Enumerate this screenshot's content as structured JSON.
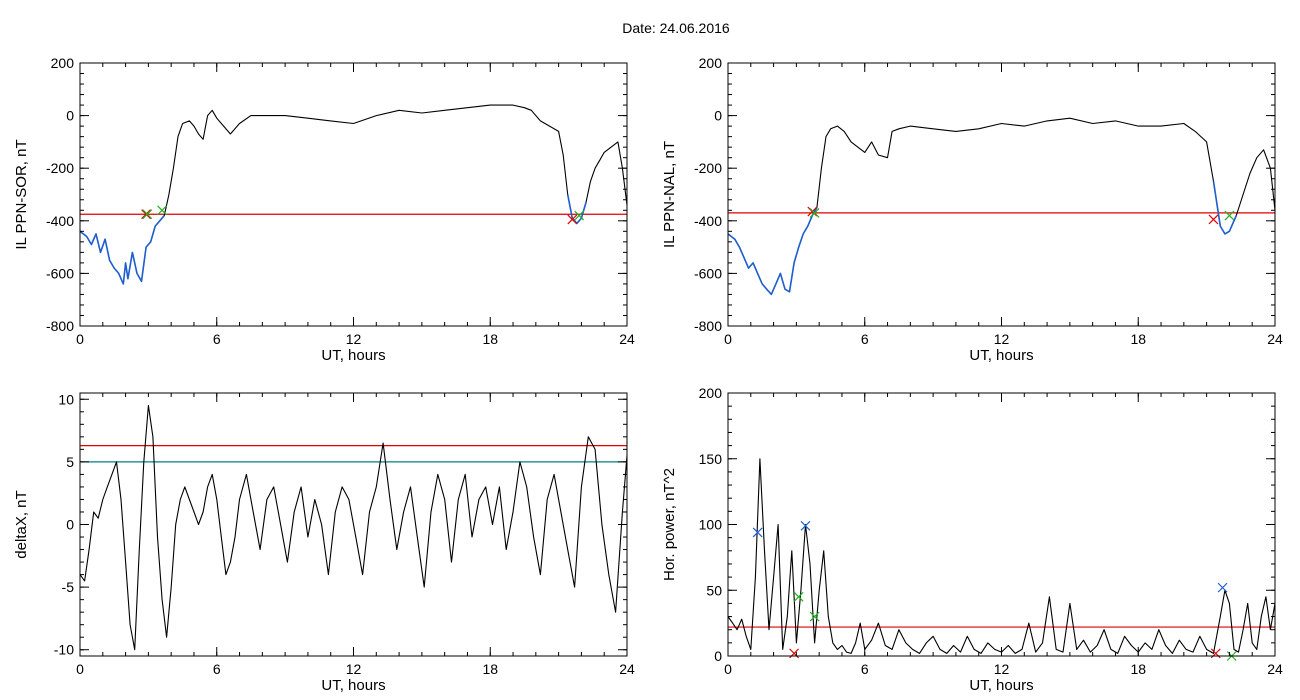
{
  "page_title": "Date:  24.06.2016",
  "colors": {
    "threshold": "#e00000",
    "threshold_secondary": "#008080",
    "segment": "#1f5fd0",
    "marker_red": "#e00000",
    "marker_green": "#22b022",
    "marker_blue": "#1f5fd0",
    "trace": "#000000"
  },
  "chart_data": [
    {
      "type": "line",
      "xlabel": "UT, hours",
      "ylabel": "IL PPN-SOR, nT",
      "xlim": [
        0,
        24
      ],
      "ylim": [
        -800,
        200
      ],
      "xticks": [
        "0",
        "6",
        "12",
        "18",
        "24"
      ],
      "yticks": [
        "-800",
        "-600",
        "-400",
        "-200",
        "0",
        "200"
      ],
      "threshold": -375,
      "threshold2": null,
      "series": [
        {
          "role": "trace",
          "x": [
            0,
            0.3,
            0.5,
            0.7,
            0.9,
            1.1,
            1.3,
            1.5,
            1.7,
            1.9,
            2.0,
            2.1,
            2.3,
            2.5,
            2.7,
            2.9,
            3.1,
            3.3,
            3.5,
            3.7,
            3.9,
            4.1,
            4.3,
            4.5,
            4.8,
            5.0,
            5.2,
            5.4,
            5.6,
            5.8,
            6.0,
            6.3,
            6.6,
            7.0,
            7.5,
            8,
            9,
            10,
            11,
            12,
            13,
            14,
            15,
            16,
            17,
            18,
            19,
            19.5,
            19.8,
            20.2,
            20.6,
            21.0,
            21.2,
            21.4,
            21.6,
            21.8,
            22.0,
            22.2,
            22.4,
            22.6,
            22.8,
            23.0,
            23.3,
            23.6,
            23.8,
            24.0
          ],
          "y": [
            -440,
            -460,
            -490,
            -450,
            -520,
            -470,
            -550,
            -580,
            -600,
            -640,
            -560,
            -620,
            -520,
            -600,
            -630,
            -500,
            -480,
            -420,
            -400,
            -380,
            -300,
            -200,
            -80,
            -30,
            -20,
            -40,
            -70,
            -90,
            0,
            20,
            -10,
            -40,
            -70,
            -30,
            0,
            0,
            0,
            -10,
            -20,
            -30,
            0,
            20,
            10,
            20,
            30,
            40,
            40,
            30,
            20,
            -20,
            -40,
            -60,
            -150,
            -300,
            -390,
            -410,
            -390,
            -330,
            -250,
            -200,
            -170,
            -140,
            -120,
            -100,
            -200,
            -340
          ]
        },
        {
          "role": "segment",
          "x": [
            0,
            0.3,
            0.5,
            0.7,
            0.9,
            1.1,
            1.3,
            1.5,
            1.7,
            1.9,
            2.0,
            2.1,
            2.3,
            2.5,
            2.7,
            2.9,
            3.1,
            3.3,
            3.5,
            3.7
          ],
          "y": [
            -440,
            -460,
            -490,
            -450,
            -520,
            -470,
            -550,
            -580,
            -600,
            -640,
            -560,
            -620,
            -520,
            -600,
            -630,
            -500,
            -480,
            -420,
            -400,
            -380
          ]
        },
        {
          "role": "segment",
          "x": [
            21.4,
            21.6,
            21.8,
            22.0,
            22.2
          ],
          "y": [
            -300,
            -390,
            -410,
            -390,
            -330
          ]
        }
      ],
      "markers": [
        {
          "x": 2.9,
          "y": -375,
          "color": "red"
        },
        {
          "x": 2.95,
          "y": -375,
          "color": "green"
        },
        {
          "x": 3.6,
          "y": -360,
          "color": "green"
        },
        {
          "x": 21.6,
          "y": -395,
          "color": "red"
        },
        {
          "x": 21.9,
          "y": -380,
          "color": "green"
        }
      ]
    },
    {
      "type": "line",
      "xlabel": "UT, hours",
      "ylabel": "IL PPN-NAL, nT",
      "xlim": [
        0,
        24
      ],
      "ylim": [
        -800,
        200
      ],
      "xticks": [
        "0",
        "6",
        "12",
        "18",
        "24"
      ],
      "yticks": [
        "-800",
        "-600",
        "-400",
        "-200",
        "0",
        "200"
      ],
      "threshold": -370,
      "threshold2": null,
      "series": [
        {
          "role": "trace",
          "x": [
            0,
            0.3,
            0.5,
            0.7,
            0.9,
            1.1,
            1.3,
            1.5,
            1.7,
            1.9,
            2.1,
            2.3,
            2.5,
            2.7,
            2.9,
            3.1,
            3.3,
            3.5,
            3.7,
            3.9,
            4.1,
            4.3,
            4.5,
            4.8,
            5.1,
            5.4,
            5.7,
            6.0,
            6.3,
            6.6,
            7.0,
            7.2,
            7.5,
            8,
            9,
            10,
            11,
            12,
            13,
            14,
            15,
            16,
            17,
            18,
            19,
            20,
            20.5,
            21.0,
            21.3,
            21.6,
            21.8,
            22.0,
            22.3,
            22.6,
            22.9,
            23.2,
            23.5,
            23.8,
            24.0
          ],
          "y": [
            -450,
            -470,
            -500,
            -540,
            -580,
            -560,
            -600,
            -640,
            -660,
            -680,
            -640,
            -600,
            -660,
            -670,
            -560,
            -500,
            -450,
            -420,
            -380,
            -350,
            -200,
            -80,
            -50,
            -40,
            -60,
            -100,
            -120,
            -140,
            -100,
            -150,
            -160,
            -60,
            -50,
            -40,
            -50,
            -60,
            -50,
            -30,
            -40,
            -20,
            -10,
            -30,
            -20,
            -40,
            -40,
            -30,
            -60,
            -100,
            -250,
            -420,
            -450,
            -440,
            -380,
            -300,
            -220,
            -160,
            -130,
            -200,
            -360
          ]
        },
        {
          "role": "segment",
          "x": [
            0,
            0.3,
            0.5,
            0.7,
            0.9,
            1.1,
            1.3,
            1.5,
            1.7,
            1.9,
            2.1,
            2.3,
            2.5,
            2.7,
            2.9,
            3.1,
            3.3,
            3.5,
            3.7,
            3.9
          ],
          "y": [
            -450,
            -470,
            -500,
            -540,
            -580,
            -560,
            -600,
            -640,
            -660,
            -680,
            -640,
            -600,
            -660,
            -670,
            -560,
            -500,
            -450,
            -420,
            -380,
            -350
          ]
        },
        {
          "role": "segment",
          "x": [
            21.3,
            21.6,
            21.8,
            22.0,
            22.3
          ],
          "y": [
            -250,
            -420,
            -450,
            -440,
            -380
          ]
        }
      ],
      "markers": [
        {
          "x": 3.7,
          "y": -365,
          "color": "red"
        },
        {
          "x": 3.8,
          "y": -370,
          "color": "green"
        },
        {
          "x": 21.3,
          "y": -395,
          "color": "red"
        },
        {
          "x": 22.0,
          "y": -380,
          "color": "green"
        }
      ]
    },
    {
      "type": "line",
      "xlabel": "UT, hours",
      "ylabel": "deltaX, nT",
      "xlim": [
        0,
        24
      ],
      "ylim": [
        -10.5,
        10.5
      ],
      "xticks": [
        "0",
        "6",
        "12",
        "18",
        "24"
      ],
      "yticks": [
        "-10",
        "-5",
        "0",
        "5",
        "10"
      ],
      "threshold": 6.3,
      "threshold2": 5.0,
      "series": [
        {
          "role": "trace",
          "x": [
            0,
            0.2,
            0.4,
            0.6,
            0.8,
            1.0,
            1.2,
            1.4,
            1.6,
            1.8,
            2.0,
            2.2,
            2.4,
            2.6,
            2.8,
            3.0,
            3.2,
            3.4,
            3.6,
            3.8,
            4.0,
            4.2,
            4.4,
            4.6,
            4.8,
            5.0,
            5.2,
            5.4,
            5.6,
            5.8,
            6.0,
            6.2,
            6.4,
            6.6,
            6.8,
            7.0,
            7.3,
            7.6,
            7.9,
            8.2,
            8.5,
            8.8,
            9.1,
            9.4,
            9.7,
            10.0,
            10.3,
            10.6,
            10.9,
            11.2,
            11.5,
            11.8,
            12.1,
            12.4,
            12.7,
            13.0,
            13.3,
            13.6,
            13.9,
            14.2,
            14.5,
            14.8,
            15.1,
            15.4,
            15.7,
            16.0,
            16.3,
            16.6,
            16.9,
            17.2,
            17.5,
            17.8,
            18.1,
            18.4,
            18.7,
            19.0,
            19.3,
            19.6,
            19.9,
            20.2,
            20.5,
            20.8,
            21.1,
            21.4,
            21.7,
            22.0,
            22.3,
            22.6,
            22.9,
            23.2,
            23.5,
            23.8,
            24.0
          ],
          "y": [
            -4,
            -4.5,
            -2,
            1,
            0.5,
            2,
            3,
            4,
            5,
            2,
            -3,
            -8,
            -10,
            -2,
            5,
            9.5,
            7,
            -1,
            -6,
            -9,
            -5,
            0,
            2,
            3,
            2,
            1,
            0,
            1,
            3,
            4,
            2,
            -1,
            -4,
            -3,
            -1,
            2,
            4,
            1,
            -2,
            2,
            3,
            0,
            -3,
            1,
            3,
            -1,
            2,
            0,
            -4,
            1,
            3,
            2,
            -1,
            -4,
            1,
            3,
            6.5,
            2,
            -2,
            1,
            3,
            -1,
            -5,
            1,
            4,
            2,
            -3,
            2,
            4,
            -1,
            2,
            3,
            0,
            3,
            -2,
            1,
            5,
            3,
            -1,
            -4,
            2,
            4,
            1,
            -2,
            -5,
            3,
            7,
            6,
            0,
            -4,
            -7,
            1,
            5.5
          ]
        }
      ],
      "markers": []
    },
    {
      "type": "line",
      "xlabel": "UT, hours",
      "ylabel": "Hor. power, nT^2",
      "xlim": [
        0,
        24
      ],
      "ylim": [
        0,
        200
      ],
      "xticks": [
        "0",
        "6",
        "12",
        "18",
        "24"
      ],
      "yticks": [
        "0",
        "50",
        "100",
        "150",
        "200"
      ],
      "threshold": 22,
      "threshold2": null,
      "series": [
        {
          "role": "trace",
          "x": [
            0,
            0.2,
            0.4,
            0.6,
            0.8,
            1.0,
            1.2,
            1.4,
            1.6,
            1.8,
            2.0,
            2.2,
            2.4,
            2.6,
            2.8,
            3.0,
            3.2,
            3.4,
            3.6,
            3.8,
            4.0,
            4.2,
            4.4,
            4.6,
            4.8,
            5.0,
            5.2,
            5.4,
            5.6,
            5.8,
            6.0,
            6.3,
            6.6,
            6.9,
            7.2,
            7.5,
            7.8,
            8.1,
            8.4,
            8.7,
            9.0,
            9.3,
            9.6,
            9.9,
            10.2,
            10.5,
            10.8,
            11.1,
            11.4,
            11.7,
            12.0,
            12.3,
            12.6,
            12.9,
            13.2,
            13.5,
            13.8,
            14.1,
            14.4,
            14.7,
            15.0,
            15.3,
            15.6,
            15.9,
            16.2,
            16.5,
            16.8,
            17.1,
            17.4,
            17.7,
            18.0,
            18.3,
            18.6,
            18.9,
            19.2,
            19.5,
            19.8,
            20.1,
            20.4,
            20.7,
            21.0,
            21.3,
            21.6,
            21.8,
            22.0,
            22.2,
            22.4,
            22.6,
            22.8,
            23.0,
            23.2,
            23.4,
            23.6,
            23.8,
            24.0
          ],
          "y": [
            30,
            25,
            20,
            28,
            15,
            5,
            60,
            150,
            80,
            20,
            60,
            100,
            5,
            30,
            80,
            10,
            50,
            100,
            70,
            10,
            50,
            80,
            30,
            10,
            5,
            8,
            3,
            2,
            10,
            25,
            5,
            12,
            25,
            8,
            5,
            20,
            10,
            5,
            2,
            10,
            15,
            5,
            2,
            8,
            3,
            15,
            5,
            2,
            10,
            5,
            3,
            8,
            2,
            5,
            25,
            3,
            10,
            45,
            5,
            3,
            40,
            5,
            12,
            3,
            8,
            20,
            5,
            2,
            15,
            8,
            3,
            10,
            5,
            20,
            8,
            2,
            12,
            5,
            3,
            15,
            5,
            2,
            30,
            50,
            40,
            5,
            3,
            20,
            40,
            10,
            5,
            30,
            45,
            20,
            40
          ]
        }
      ],
      "markers": [
        {
          "x": 1.3,
          "y": 94,
          "color": "blue"
        },
        {
          "x": 3.4,
          "y": 99,
          "color": "blue"
        },
        {
          "x": 3.1,
          "y": 45,
          "color": "green"
        },
        {
          "x": 3.8,
          "y": 30,
          "color": "green"
        },
        {
          "x": 2.9,
          "y": 2,
          "color": "red"
        },
        {
          "x": 21.7,
          "y": 52,
          "color": "blue"
        },
        {
          "x": 21.4,
          "y": 2,
          "color": "red"
        },
        {
          "x": 22.1,
          "y": 0,
          "color": "green"
        }
      ]
    }
  ]
}
